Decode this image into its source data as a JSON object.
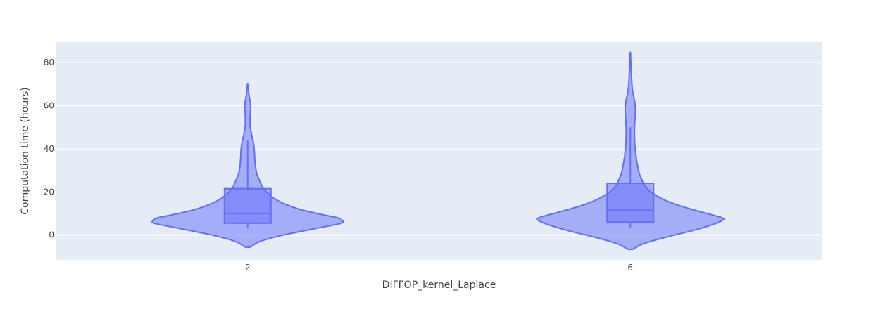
{
  "chart_data": {
    "type": "violin",
    "title": "",
    "xlabel": "DIFFOP_kernel_Laplace",
    "ylabel": "Computation time (hours)",
    "categories": [
      "2",
      "6"
    ],
    "ylim": [
      -11.5,
      89.5
    ],
    "yticks": [
      0,
      20,
      40,
      60,
      80
    ],
    "grid": true,
    "legend": "none",
    "colors": {
      "violin_fill": "#636efa",
      "violin_line": "#636efa",
      "plot_bg": "#e5ecf6",
      "grid": "#ffffff"
    },
    "violins": [
      {
        "category": "2",
        "box": {
          "q1": 5.5,
          "median": 10,
          "q3": 21.5,
          "whisker_low": 3.5,
          "whisker_high": 44
        },
        "density": [
          [
            -5.5,
            0.03
          ],
          [
            -3,
            0.13
          ],
          [
            0,
            0.38
          ],
          [
            3,
            0.72
          ],
          [
            5.5,
            1.0
          ],
          [
            7,
            1.0
          ],
          [
            8,
            0.96
          ],
          [
            10,
            0.74
          ],
          [
            12,
            0.55
          ],
          [
            14,
            0.42
          ],
          [
            16,
            0.32
          ],
          [
            18,
            0.25
          ],
          [
            20,
            0.2
          ],
          [
            22,
            0.16
          ],
          [
            24,
            0.14
          ],
          [
            26,
            0.12
          ],
          [
            28,
            0.1
          ],
          [
            30,
            0.09
          ],
          [
            33,
            0.08
          ],
          [
            36,
            0.075
          ],
          [
            40,
            0.07
          ],
          [
            43,
            0.06
          ],
          [
            46,
            0.045
          ],
          [
            50,
            0.028
          ],
          [
            54,
            0.025
          ],
          [
            58,
            0.03
          ],
          [
            61,
            0.03
          ],
          [
            64,
            0.018
          ],
          [
            67,
            0.009
          ],
          [
            70,
            0.003
          ]
        ]
      },
      {
        "category": "6",
        "box": {
          "q1": 6,
          "median": 11.5,
          "q3": 24,
          "whisker_low": 3.5,
          "whisker_high": 50
        },
        "density": [
          [
            -6.5,
            0.03
          ],
          [
            -4,
            0.14
          ],
          [
            -1,
            0.38
          ],
          [
            2,
            0.66
          ],
          [
            5,
            0.89
          ],
          [
            7,
            0.99
          ],
          [
            8,
            0.98
          ],
          [
            10,
            0.82
          ],
          [
            12,
            0.65
          ],
          [
            14,
            0.5
          ],
          [
            16,
            0.38
          ],
          [
            18,
            0.29
          ],
          [
            20,
            0.22
          ],
          [
            22,
            0.17
          ],
          [
            24,
            0.14
          ],
          [
            26,
            0.12
          ],
          [
            28,
            0.1
          ],
          [
            30,
            0.088
          ],
          [
            34,
            0.07
          ],
          [
            38,
            0.057
          ],
          [
            42,
            0.048
          ],
          [
            46,
            0.045
          ],
          [
            50,
            0.045
          ],
          [
            54,
            0.05
          ],
          [
            58,
            0.055
          ],
          [
            61,
            0.05
          ],
          [
            64,
            0.038
          ],
          [
            67,
            0.024
          ],
          [
            70,
            0.017
          ],
          [
            74,
            0.012
          ],
          [
            78,
            0.008
          ],
          [
            81,
            0.004
          ],
          [
            84.5,
            0.002
          ]
        ]
      }
    ]
  }
}
